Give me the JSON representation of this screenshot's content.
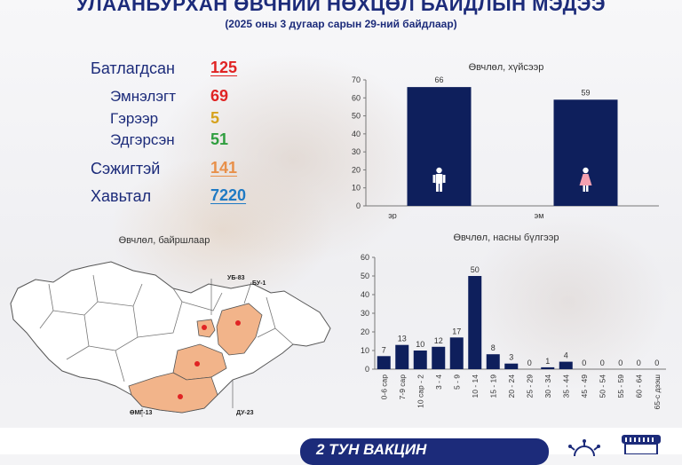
{
  "header": {
    "title": "УЛААНБУРХАН ӨВЧНИЙ НӨХЦӨЛ БАЙДЛЫН МЭДЭЭ",
    "subtitle": "(2025 оны 3 дугаар сарын 29-ний байдлаар)"
  },
  "stats": {
    "confirmed": {
      "label": "Батлагдсан",
      "value": "125",
      "color": "#e02424"
    },
    "hospital": {
      "label": "Эмнэлэгт",
      "value": "69",
      "color": "#e02424"
    },
    "home": {
      "label": "Гэрээр",
      "value": "5",
      "color": "#d6a21e"
    },
    "recovered": {
      "label": "Эдгэрсэн",
      "value": "51",
      "color": "#2f9e3f"
    },
    "suspected": {
      "label": "Сэжигтэй",
      "value": "141",
      "color": "#e8904a"
    },
    "contacts": {
      "label": "Хавьтал",
      "value": "7220",
      "color": "#1f7ac4"
    }
  },
  "map": {
    "title": "Өвчлөл, байршлаар",
    "labels": {
      "ub": "УБ-83",
      "bu": "БУ-1",
      "omg": "ӨМГ-13",
      "du": "ДУ-23"
    },
    "highlight_color": "#f2b48a",
    "dot_color": "#e02424"
  },
  "chart_data": [
    {
      "type": "bar",
      "title": "Өвчлөл, хүйсээр",
      "categories": [
        "эр",
        "эм"
      ],
      "values": [
        66,
        59
      ],
      "ylim": [
        0,
        70
      ],
      "yticks": [
        0,
        10,
        20,
        30,
        40,
        50,
        60,
        70
      ],
      "grid": false,
      "color": "#0e1f5c"
    },
    {
      "type": "bar",
      "title": "Өвчлөл, насны бүлгээр",
      "categories": [
        "0-6 сар",
        "7-9 сар",
        "10 сар - 2",
        "3 - 4",
        "5 - 9",
        "10 - 14",
        "15 - 19",
        "20 - 24",
        "25 - 29",
        "30 - 34",
        "35 - 44",
        "45 - 49",
        "50 - 54",
        "55 - 59",
        "60 - 64",
        "65-с дээш"
      ],
      "values": [
        7,
        13,
        10,
        12,
        17,
        50,
        8,
        3,
        0,
        1,
        4,
        0,
        0,
        0,
        0,
        0
      ],
      "ylim": [
        0,
        60
      ],
      "yticks": [
        0,
        10,
        20,
        30,
        40,
        50,
        60
      ],
      "grid": false,
      "color": "#0e1f5c"
    }
  ],
  "footer": {
    "banner_text": "2 ТУН ВАКЦИН"
  }
}
